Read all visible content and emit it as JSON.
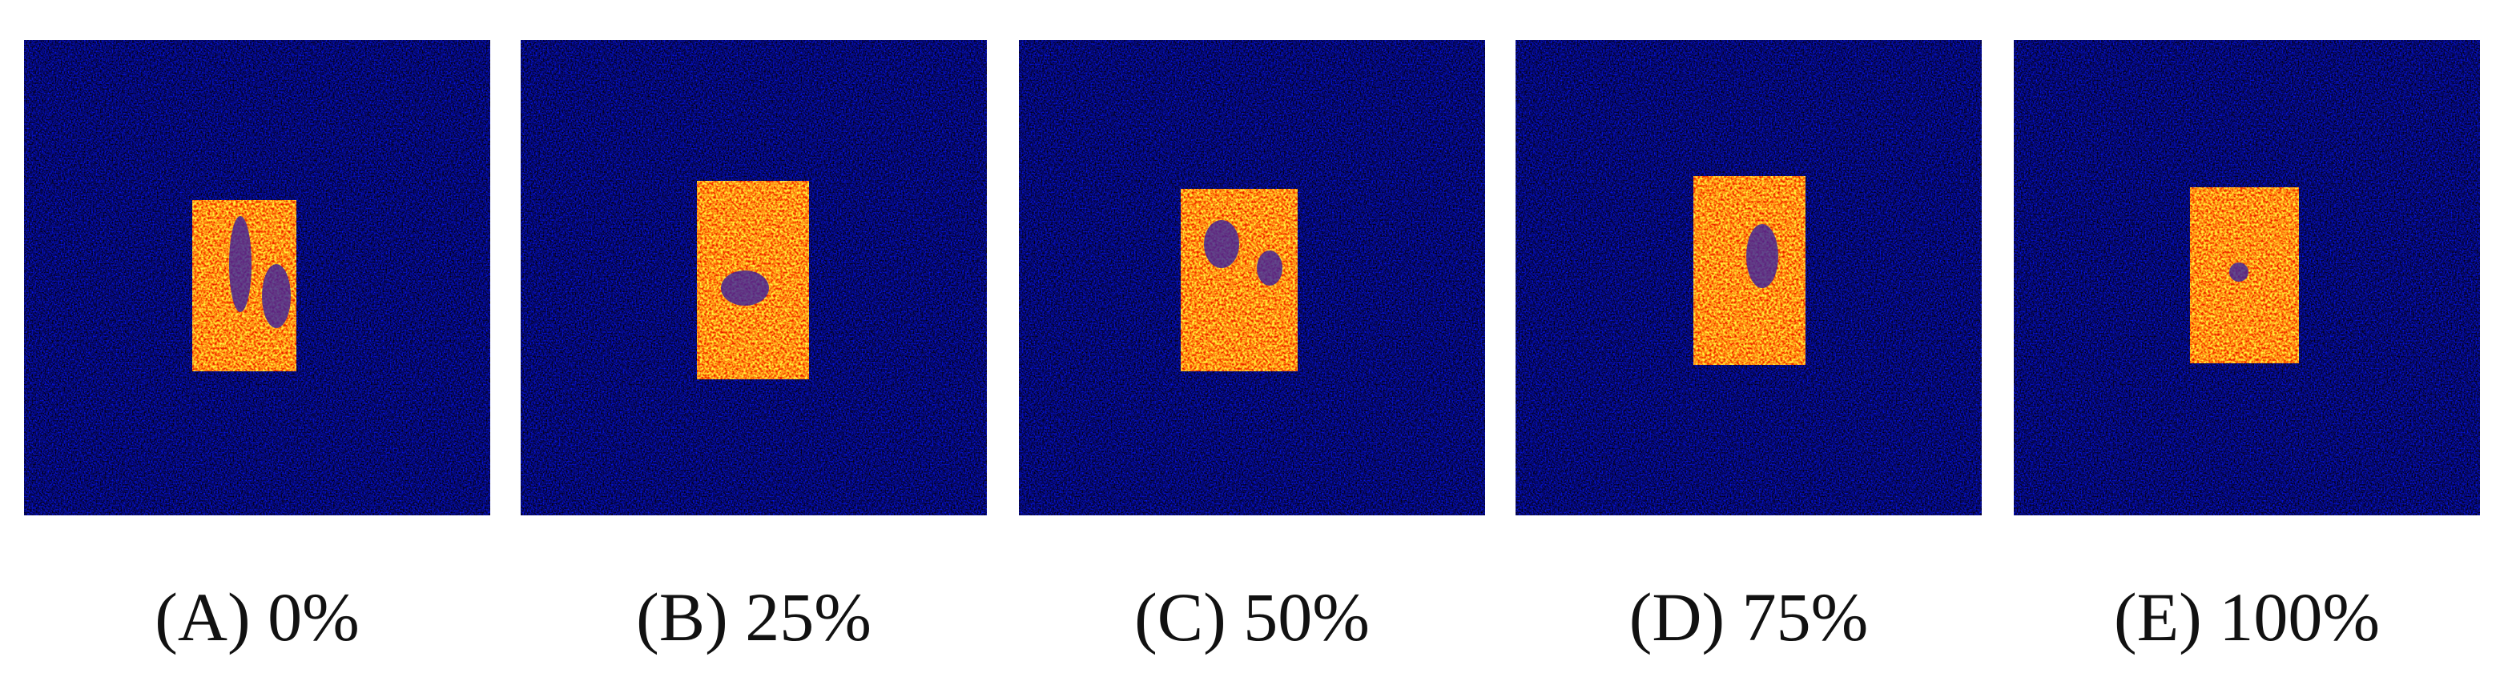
{
  "figure": {
    "panels": [
      {
        "caption": "(A) 0%"
      },
      {
        "caption": "(B) 25%"
      },
      {
        "caption": "(C) 50%"
      },
      {
        "caption": "(D) 75%"
      },
      {
        "caption": "(E) 100%"
      }
    ]
  }
}
